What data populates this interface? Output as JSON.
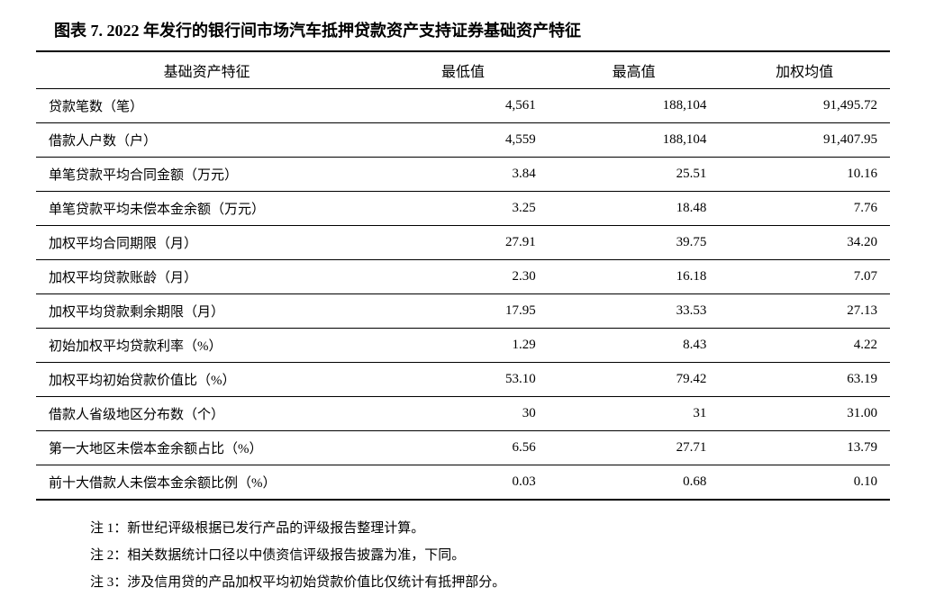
{
  "title": "图表 7. 2022 年发行的银行间市场汽车抵押贷款资产支持证券基础资产特征",
  "table": {
    "columns": [
      "基础资产特征",
      "最低值",
      "最高值",
      "加权均值"
    ],
    "col_widths": [
      "40%",
      "20%",
      "20%",
      "20%"
    ],
    "rows": [
      [
        "贷款笔数（笔）",
        "4,561",
        "188,104",
        "91,495.72"
      ],
      [
        "借款人户数（户）",
        "4,559",
        "188,104",
        "91,407.95"
      ],
      [
        "单笔贷款平均合同金额（万元）",
        "3.84",
        "25.51",
        "10.16"
      ],
      [
        "单笔贷款平均未偿本金余额（万元）",
        "3.25",
        "18.48",
        "7.76"
      ],
      [
        "加权平均合同期限（月）",
        "27.91",
        "39.75",
        "34.20"
      ],
      [
        "加权平均贷款账龄（月）",
        "2.30",
        "16.18",
        "7.07"
      ],
      [
        "加权平均贷款剩余期限（月）",
        "17.95",
        "33.53",
        "27.13"
      ],
      [
        "初始加权平均贷款利率（%）",
        "1.29",
        "8.43",
        "4.22"
      ],
      [
        "加权平均初始贷款价值比（%）",
        "53.10",
        "79.42",
        "63.19"
      ],
      [
        "借款人省级地区分布数（个）",
        "30",
        "31",
        "31.00"
      ],
      [
        "第一大地区未偿本金余额占比（%）",
        "6.56",
        "27.71",
        "13.79"
      ],
      [
        "前十大借款人未偿本金余额比例（%）",
        "0.03",
        "0.68",
        "0.10"
      ]
    ]
  },
  "notes": [
    "注 1：新世纪评级根据已发行产品的评级报告整理计算。",
    "注 2：相关数据统计口径以中债资信评级报告披露为准，下同。",
    "注 3：涉及信用贷的产品加权平均初始贷款价值比仅统计有抵押部分。"
  ],
  "style": {
    "title_fontsize": 18,
    "header_fontsize": 16,
    "cell_fontsize": 15,
    "note_fontsize": 15,
    "border_color": "#000000",
    "text_color": "#000000",
    "background_color": "#ffffff",
    "top_border_width": 2,
    "bottom_border_width": 2,
    "row_border_width": 1
  }
}
